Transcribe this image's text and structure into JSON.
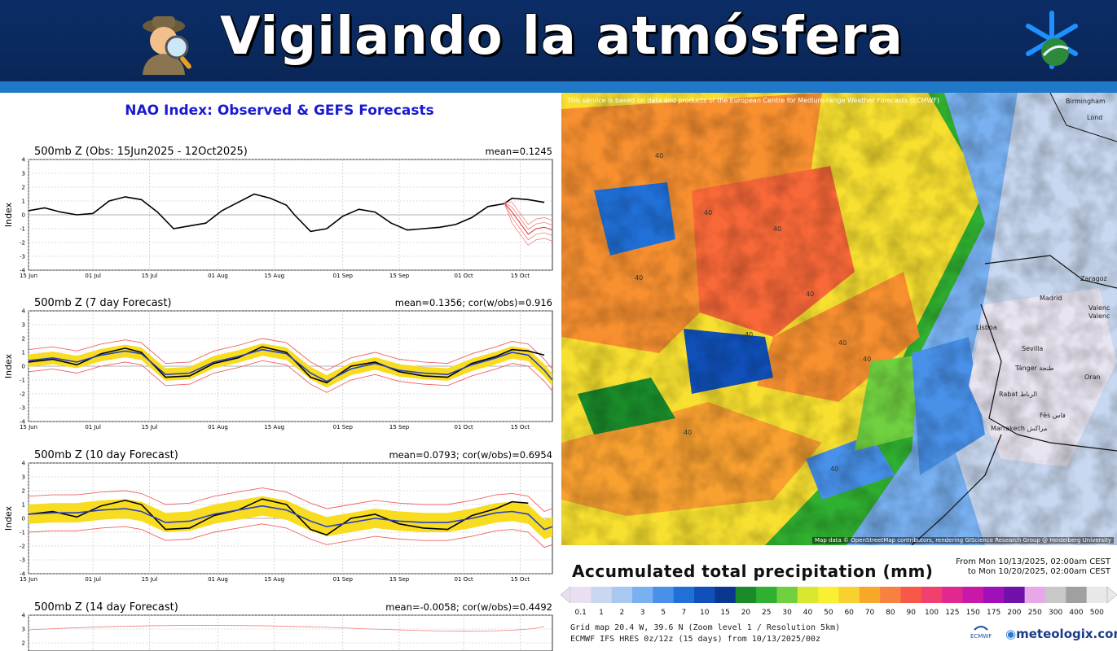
{
  "banner": {
    "title": "Vigilando la atmósfera"
  },
  "nao": {
    "title": "NAO Index: Observed & GEFS Forecasts",
    "ylabel": "Index",
    "xticks": [
      "15 Jun",
      "01 Jul",
      "15 Jul",
      "01 Aug",
      "15 Aug",
      "01 Sep",
      "15 Sep",
      "01 Oct",
      "15 Oct"
    ],
    "yticks": [
      "4",
      "3",
      "2",
      "1",
      "0",
      "-1",
      "-2",
      "-3",
      "-4"
    ],
    "panels": [
      {
        "title": "500mb Z (Obs: 15Jun2025 - 12Oct2025)",
        "stat": "mean=0.1245"
      },
      {
        "title": "500mb Z (7 day Forecast)",
        "stat": "mean=0.1356; cor(w/obs)=0.916"
      },
      {
        "title": "500mb Z (10 day Forecast)",
        "stat": "mean=0.0793; cor(w/obs)=0.6954"
      },
      {
        "title": "500mb Z (14 day Forecast)",
        "stat": "mean=-0.0058; cor(w/obs)=0.4492"
      }
    ]
  },
  "chart_data": [
    {
      "type": "line",
      "title": "500mb Z (Obs: 15Jun2025 - 12Oct2025)",
      "ylabel": "Index",
      "ylim": [
        -4,
        4
      ],
      "x_days_range": [
        0,
        130
      ],
      "series": [
        {
          "color": "#000000",
          "x": [
            0,
            4,
            8,
            12,
            16,
            20,
            24,
            28,
            32,
            36,
            40,
            44,
            48,
            52,
            56,
            60,
            64,
            66,
            70,
            74,
            78,
            82,
            86,
            90,
            94,
            98,
            102,
            106,
            110,
            114,
            118,
            120,
            124,
            128
          ],
          "values": [
            0.3,
            0.5,
            0.2,
            0.0,
            0.1,
            1.0,
            1.3,
            1.1,
            0.2,
            -1.0,
            -0.8,
            -0.6,
            0.3,
            0.9,
            1.5,
            1.2,
            0.7,
            0.0,
            -1.2,
            -1.0,
            -0.1,
            0.4,
            0.2,
            -0.6,
            -1.1,
            -1.0,
            -0.9,
            -0.7,
            -0.2,
            0.6,
            0.8,
            1.2,
            1.1,
            0.9
          ]
        },
        {
          "color": "#e03030",
          "x": [
            118,
            120,
            122,
            124,
            126,
            128,
            130
          ],
          "values": [
            0.9,
            0.2,
            -0.6,
            -1.4,
            -1.0,
            -0.9,
            -1.1
          ]
        }
      ]
    },
    {
      "type": "line",
      "title": "500mb Z (7 day Forecast)",
      "ylabel": "Index",
      "ylim": [
        -4,
        4
      ],
      "series": [
        {
          "color": "#000000",
          "x": [
            0,
            6,
            12,
            18,
            24,
            28,
            34,
            40,
            46,
            52,
            58,
            64,
            70,
            74,
            80,
            86,
            92,
            98,
            104,
            110,
            116,
            120,
            124,
            128
          ],
          "values": [
            0.3,
            0.5,
            0.1,
            0.9,
            1.3,
            1.0,
            -0.8,
            -0.7,
            0.2,
            0.6,
            1.4,
            1.0,
            -0.8,
            -1.2,
            0.0,
            0.3,
            -0.4,
            -0.7,
            -0.8,
            0.2,
            0.7,
            1.2,
            1.1,
            0.8
          ]
        },
        {
          "color": "#2a40c0",
          "x": [
            0,
            6,
            12,
            18,
            24,
            28,
            34,
            40,
            46,
            52,
            58,
            64,
            70,
            74,
            80,
            86,
            92,
            98,
            104,
            110,
            116,
            120,
            124,
            128,
            130
          ],
          "values": [
            0.4,
            0.6,
            0.3,
            0.8,
            1.1,
            0.9,
            -0.6,
            -0.5,
            0.3,
            0.7,
            1.2,
            0.9,
            -0.5,
            -1.1,
            -0.2,
            0.2,
            -0.3,
            -0.5,
            -0.6,
            0.1,
            0.6,
            1.0,
            0.8,
            -0.3,
            -1.0
          ]
        }
      ]
    },
    {
      "type": "line",
      "title": "500mb Z (10 day Forecast)",
      "ylabel": "Index",
      "ylim": [
        -4,
        4
      ],
      "series": [
        {
          "color": "#000000",
          "x": [
            0,
            6,
            12,
            18,
            24,
            28,
            34,
            40,
            46,
            52,
            58,
            64,
            70,
            74,
            80,
            86,
            92,
            98,
            104,
            110,
            116,
            120,
            124
          ],
          "values": [
            0.3,
            0.5,
            0.1,
            0.9,
            1.3,
            1.0,
            -0.8,
            -0.7,
            0.2,
            0.6,
            1.4,
            1.0,
            -0.8,
            -1.2,
            0.0,
            0.3,
            -0.4,
            -0.7,
            -0.8,
            0.2,
            0.7,
            1.2,
            1.1
          ]
        },
        {
          "color": "#2a40c0",
          "x": [
            0,
            6,
            12,
            18,
            24,
            28,
            34,
            40,
            46,
            52,
            58,
            64,
            70,
            74,
            80,
            86,
            92,
            98,
            104,
            110,
            116,
            120,
            124,
            128,
            130
          ],
          "values": [
            0.3,
            0.4,
            0.4,
            0.6,
            0.7,
            0.5,
            -0.3,
            -0.2,
            0.3,
            0.6,
            0.9,
            0.6,
            -0.2,
            -0.6,
            -0.3,
            0.0,
            -0.2,
            -0.3,
            -0.3,
            0.0,
            0.4,
            0.5,
            0.3,
            -0.8,
            -0.6
          ]
        }
      ]
    }
  ],
  "map": {
    "credit": "This service is based on data and products of the European Centre for Medium-range Weather Forecasts (ECMWF)",
    "attribution": "Map data © OpenStreetMap contributors, rendering GIScience Research Group @ Heidelberg University",
    "cities": [
      "Birmingham",
      "Lond",
      "Zaragoz",
      "Madrid",
      "Valenc",
      "Valenc",
      "Lisboa",
      "Sevilla",
      "Tánger طنجة",
      "Oran",
      "Rabat الرباط",
      "Fès فاس",
      "Marrakech مراكش"
    ],
    "contour_label": "40"
  },
  "precip": {
    "title": "Accumulated total precipitation (mm)",
    "from": "From Mon 10/13/2025, 02:00am CEST",
    "to": "to Mon 10/20/2025, 02:00am CEST",
    "scale_labels": [
      "0.1",
      "1",
      "2",
      "3",
      "5",
      "7",
      "10",
      "15",
      "20",
      "25",
      "30",
      "40",
      "50",
      "60",
      "70",
      "80",
      "90",
      "100",
      "125",
      "150",
      "175",
      "200",
      "250",
      "300",
      "400",
      "500"
    ],
    "scale_colors": [
      "#e8e0f0",
      "#c8d8f0",
      "#a8c8f0",
      "#78b0f0",
      "#4890e8",
      "#2070d8",
      "#1050b8",
      "#0a3890",
      "#1a8a2a",
      "#30b030",
      "#70d040",
      "#d8e830",
      "#f8f030",
      "#f8d030",
      "#f8a828",
      "#f88040",
      "#f85848",
      "#f04070",
      "#e02890",
      "#c818a8",
      "#a010b8",
      "#7010a8",
      "#e8a8e8",
      "#c8c8c8",
      "#a0a0a0",
      "#e8e8e8"
    ],
    "grid": "Grid map 20.4 W, 39.6 N (Zoom level 1 / Resolution 5km)",
    "model": "ECMWF IFS HRES 0z/12z (15 days) from 10/13/2025/00z",
    "ecmwf": "ECMWF",
    "brand": "meteologix.com"
  }
}
